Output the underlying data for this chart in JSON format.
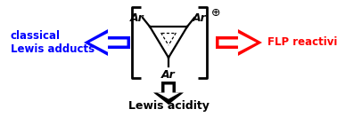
{
  "background_color": "#ffffff",
  "left_label_line1": "classical",
  "left_label_line2": "Lewis adducts",
  "right_label": "FLP reactivity",
  "bottom_label": "Lewis acidity",
  "left_color": "#0000ff",
  "right_color": "#ff0000",
  "bottom_color": "#000000",
  "bracket_color": "#000000",
  "structure_color": "#000000",
  "ar_color": "#000000"
}
